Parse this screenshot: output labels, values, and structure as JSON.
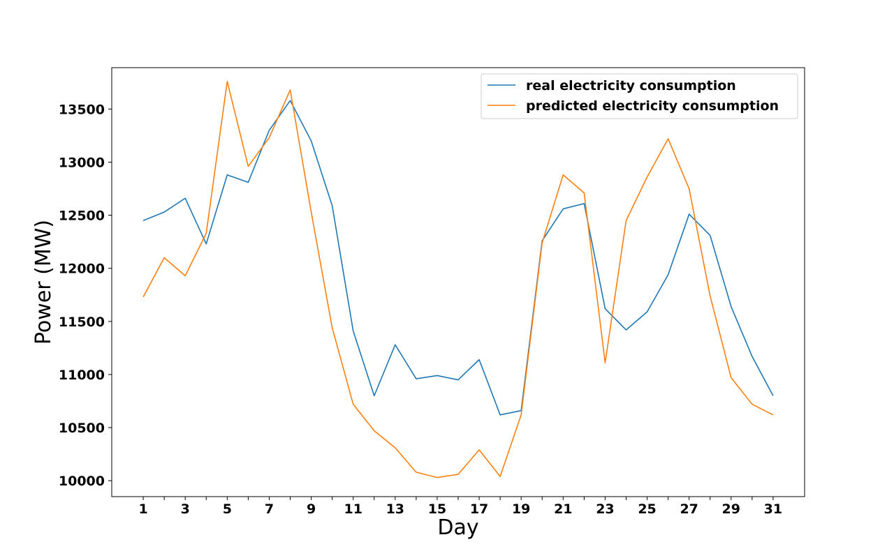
{
  "chart_data": {
    "type": "line",
    "xlabel": "Day",
    "ylabel": "Power (MW)",
    "x": [
      1,
      2,
      3,
      4,
      5,
      6,
      7,
      8,
      9,
      10,
      11,
      12,
      13,
      14,
      15,
      16,
      17,
      18,
      19,
      20,
      21,
      22,
      23,
      24,
      25,
      26,
      27,
      28,
      29,
      30,
      31
    ],
    "xticks": [
      1,
      3,
      5,
      7,
      9,
      11,
      13,
      15,
      17,
      19,
      21,
      23,
      25,
      27,
      29,
      31
    ],
    "xlim": [
      -0.5,
      32.5
    ],
    "ylim": [
      9850,
      13890
    ],
    "yticks": [
      10000,
      10500,
      11000,
      11500,
      12000,
      12500,
      13000,
      13500
    ],
    "legend_position": "top-right",
    "grid": false,
    "series": [
      {
        "name": "real electricity consumption",
        "color": "#1f77b4",
        "values": [
          12450,
          12530,
          12660,
          12230,
          12880,
          12810,
          13300,
          13580,
          13200,
          12590,
          11410,
          10800,
          11280,
          10960,
          10990,
          10950,
          11140,
          10620,
          10660,
          12260,
          12560,
          12610,
          11620,
          11420,
          11590,
          11940,
          12510,
          12310,
          11640,
          11170,
          10800
        ]
      },
      {
        "name": "predicted electricity consumption",
        "color": "#ff7f0e",
        "values": [
          11730,
          12100,
          11930,
          12330,
          13760,
          12960,
          13230,
          13680,
          12530,
          11440,
          10720,
          10470,
          10310,
          10080,
          10030,
          10060,
          10290,
          10040,
          10620,
          12240,
          12880,
          12710,
          11110,
          12450,
          12860,
          13220,
          12750,
          11740,
          10970,
          10720,
          10620
        ]
      }
    ]
  }
}
